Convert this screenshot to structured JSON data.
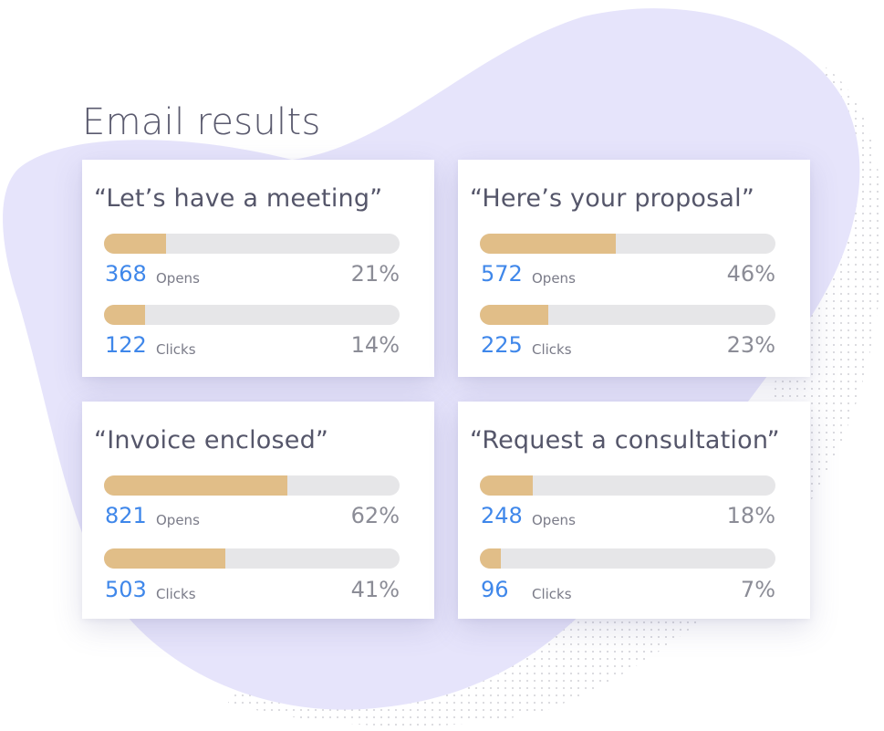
{
  "page": {
    "title": "Email results"
  },
  "colors": {
    "blob": "#e6e4fb",
    "bar_track": "#e6e6e8",
    "bar_fill": "#e1be88",
    "count_text": "#3f87ea",
    "percent_text": "#8b8c96"
  },
  "cards": [
    {
      "title": "“Let’s have a meeting”",
      "metrics": [
        {
          "count": "368",
          "label": "Opens",
          "percent": "21%",
          "value": 0.21
        },
        {
          "count": "122",
          "label": "Clicks",
          "percent": "14%",
          "value": 0.14
        }
      ]
    },
    {
      "title": "“Here’s your proposal”",
      "metrics": [
        {
          "count": "572",
          "label": "Opens",
          "percent": "46%",
          "value": 0.46
        },
        {
          "count": "225",
          "label": "Clicks",
          "percent": "23%",
          "value": 0.23
        }
      ]
    },
    {
      "title": "“Invoice enclosed”",
      "metrics": [
        {
          "count": "821",
          "label": "Opens",
          "percent": "62%",
          "value": 0.62
        },
        {
          "count": "503",
          "label": "Clicks",
          "percent": "41%",
          "value": 0.41
        }
      ]
    },
    {
      "title": "“Request a consultation”",
      "metrics": [
        {
          "count": "248",
          "label": "Opens",
          "percent": "18%",
          "value": 0.18
        },
        {
          "count": "96",
          "label": "Clicks",
          "percent": "7%",
          "value": 0.07
        }
      ]
    }
  ]
}
